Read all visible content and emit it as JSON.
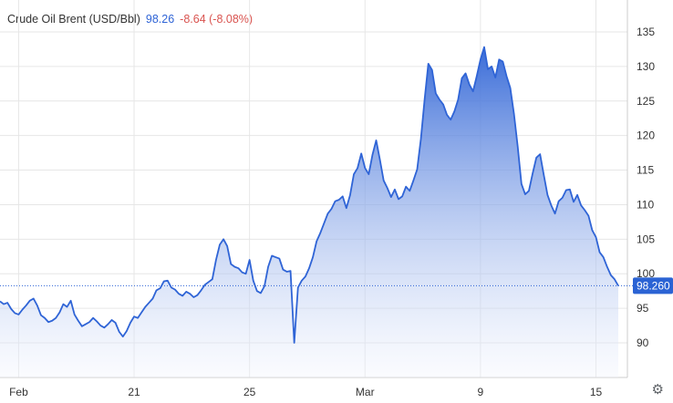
{
  "header": {
    "name": "Crude Oil Brent (USD/Bbl)",
    "price": "98.26",
    "change": "-8.64 (-8.08%)"
  },
  "colors": {
    "line": "#2f64d6",
    "area_top": "#2f64d6",
    "area_bottom": "#f2f5fd",
    "price_label_bg": "#2b63d4",
    "price": "#2f64d6",
    "change": "#d9534f",
    "grid": "#e6e6e6"
  },
  "icons": {
    "settings": "gear-icon"
  },
  "chart_data": {
    "type": "area",
    "title": "",
    "xlabel": "",
    "ylabel": "",
    "ylim": [
      85,
      137
    ],
    "y_ticks": [
      90,
      95,
      100,
      105,
      110,
      115,
      120,
      125,
      130,
      135
    ],
    "x_tick_labels": [
      {
        "label": "Feb",
        "index": 5
      },
      {
        "label": "21",
        "index": 36
      },
      {
        "label": "25",
        "index": 67
      },
      {
        "label": "Mar",
        "index": 98
      },
      {
        "label": "9",
        "index": 129
      },
      {
        "label": "15",
        "index": 160
      }
    ],
    "grid": true,
    "last_value_label": "98.260",
    "series": [
      {
        "values": [
          96.0,
          95.6,
          95.8,
          94.9,
          94.3,
          94.1,
          94.8,
          95.4,
          96.1,
          96.4,
          95.4,
          94.0,
          93.6,
          93.0,
          93.2,
          93.6,
          94.4,
          95.6,
          95.2,
          96.1,
          94.1,
          93.2,
          92.4,
          92.7,
          93.0,
          93.6,
          93.1,
          92.5,
          92.2,
          92.7,
          93.3,
          92.9,
          91.6,
          90.9,
          91.7,
          92.9,
          93.8,
          93.6,
          94.4,
          95.2,
          95.8,
          96.4,
          97.6,
          97.9,
          98.9,
          99.0,
          98.0,
          97.7,
          97.1,
          96.8,
          97.4,
          97.1,
          96.6,
          96.9,
          97.6,
          98.4,
          98.8,
          99.2,
          102.0,
          104.2,
          105.0,
          104.0,
          101.4,
          101.0,
          100.8,
          100.2,
          100.0,
          102.0,
          99.0,
          97.5,
          97.2,
          98.2,
          101.0,
          102.6,
          102.4,
          102.2,
          100.6,
          100.3,
          100.4,
          90.0,
          98.0,
          99.0,
          99.6,
          100.8,
          102.4,
          104.7,
          105.9,
          107.3,
          108.7,
          109.4,
          110.5,
          110.7,
          111.2,
          109.5,
          111.4,
          114.4,
          115.3,
          117.4,
          115.3,
          114.4,
          117.2,
          119.3,
          116.5,
          113.5,
          112.4,
          111.1,
          112.2,
          110.8,
          111.2,
          112.6,
          112.0,
          113.5,
          115.1,
          119.5,
          125.2,
          130.4,
          129.5,
          126.1,
          125.2,
          124.5,
          123.0,
          122.3,
          123.5,
          125.2,
          128.3,
          129.0,
          127.4,
          126.4,
          128.6,
          131.0,
          132.8,
          129.6,
          130.0,
          128.4,
          131.0,
          130.7,
          128.6,
          126.9,
          123.1,
          118.4,
          113.0,
          111.5,
          112.0,
          114.5,
          116.8,
          117.3,
          114.3,
          111.4,
          109.9,
          108.7,
          110.5,
          111.0,
          112.1,
          112.2,
          110.4,
          111.4,
          109.9,
          109.2,
          108.4,
          106.3,
          105.3,
          103.1,
          102.4,
          101.0,
          99.8,
          99.2,
          98.26
        ]
      }
    ]
  }
}
